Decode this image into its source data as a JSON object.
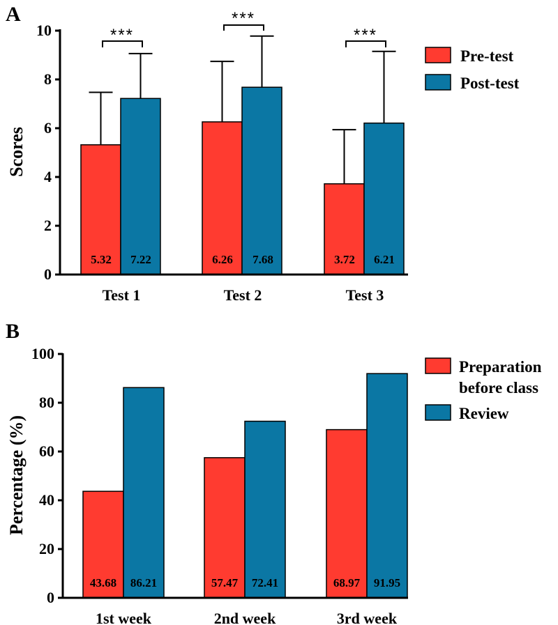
{
  "colors": {
    "series1": "#ff3b30",
    "series2": "#0b77a4"
  },
  "chart_data": [
    {
      "panel": "A",
      "type": "bar",
      "title": "",
      "xlabel": "",
      "ylabel": "Scores",
      "ylim": [
        0,
        10
      ],
      "yticks": [
        "0",
        "2",
        "4",
        "6",
        "8",
        "10"
      ],
      "ytick_values": [
        0,
        2,
        4,
        6,
        8,
        10
      ],
      "categories": [
        "Test 1",
        "Test 2",
        "Test 3"
      ],
      "series": [
        {
          "name": "Pre-test",
          "color": "#ff3b30",
          "values": [
            5.32,
            6.26,
            3.72
          ],
          "labels": [
            "5.32",
            "6.26",
            "3.72"
          ],
          "errors": [
            2.15,
            2.48,
            2.22
          ]
        },
        {
          "name": "Post-test",
          "color": "#0b77a4",
          "values": [
            7.22,
            7.68,
            6.21
          ],
          "labels": [
            "7.22",
            "7.68",
            "6.21"
          ],
          "errors": [
            1.84,
            2.1,
            2.94
          ]
        }
      ],
      "significance": [
        "***",
        "***",
        "***"
      ],
      "legend": "top-right"
    },
    {
      "panel": "B",
      "type": "bar",
      "title": "",
      "xlabel": "",
      "ylabel": "Percentage (%)",
      "ylim": [
        0,
        100
      ],
      "yticks": [
        "0",
        "20",
        "40",
        "60",
        "80",
        "100"
      ],
      "ytick_values": [
        0,
        20,
        40,
        60,
        80,
        100
      ],
      "categories": [
        "1st week",
        "2nd week",
        "3rd week"
      ],
      "series": [
        {
          "name": "Preparation before class",
          "legend_lines": [
            "Preparation",
            "before class"
          ],
          "color": "#ff3b30",
          "values": [
            43.68,
            57.47,
            68.97
          ],
          "labels": [
            "43.68",
            "57.47",
            "68.97"
          ]
        },
        {
          "name": "Review",
          "legend_lines": [
            "Review"
          ],
          "color": "#0b77a4",
          "values": [
            86.21,
            72.41,
            91.95
          ],
          "labels": [
            "86.21",
            "72.41",
            "91.95"
          ]
        }
      ],
      "legend": "top-right"
    }
  ]
}
